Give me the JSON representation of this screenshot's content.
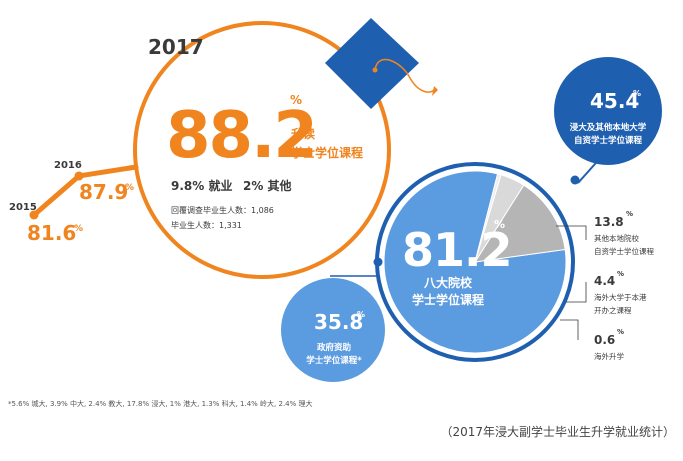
{
  "year": "2017",
  "colors": {
    "orange": "#f0851f",
    "blue_dark": "#1f5fb0",
    "blue_light": "#5b9be0",
    "gray": "#b5b5b5",
    "gray_light": "#d9d9d9",
    "dark_text": "#3a3a3a"
  },
  "chart_data": [
    {
      "type": "line",
      "x": [
        "2015",
        "2016",
        "2017"
      ],
      "values": [
        81.6,
        87.9,
        88.2
      ],
      "value_labels": [
        "81.6",
        "87.9",
        "88.2"
      ],
      "unit": "%",
      "highlight": {
        "value": "88.2",
        "unit": "%",
        "label_line1": "升读",
        "label_line2": "学士学位课程",
        "employment": "9.8% 就业",
        "other": "2% 其他",
        "surveyed": "回覆调查毕业生人数：1,086",
        "graduates": "毕业生人数：1,331"
      }
    },
    {
      "type": "pie",
      "slices": [
        {
          "name": "八大院校 学士学位课程",
          "value": 81.2,
          "value_label": "81.2",
          "unit": "%",
          "label_line1": "八大院校",
          "label_line2": "学士学位课程"
        },
        {
          "name": "其他本地院校 自资学士学位课程",
          "value": 13.8,
          "value_label": "13.8",
          "unit": "%",
          "label_line1": "其他本地院校",
          "label_line2": "自资学士学位课程"
        },
        {
          "name": "海外大学于本港 开办之课程",
          "value": 4.4,
          "value_label": "4.4",
          "unit": "%",
          "label_line1": "海外大学于本港",
          "label_line2": "开办之课程"
        },
        {
          "name": "海外升学",
          "value": 0.6,
          "value_label": "0.6",
          "unit": "%",
          "label_line1": "海外升学",
          "label_line2": ""
        }
      ],
      "callouts": [
        {
          "value": "45.4",
          "unit": "%",
          "label_line1": "浸大及其他本地大学",
          "label_line2": "自资学士学位课程"
        },
        {
          "value": "35.8",
          "unit": "%",
          "label_line1": "政府资助",
          "label_line2": "学士学位课程*"
        }
      ]
    }
  ],
  "footnote": "*5.6% 城大, 3.9% 中大, 2.4% 教大, 17.8% 浸大, 1% 港大, 1.3% 科大, 1.4% 岭大, 2.4% 理大",
  "caption": "（2017年浸大副学士毕业生升学就业统计）"
}
